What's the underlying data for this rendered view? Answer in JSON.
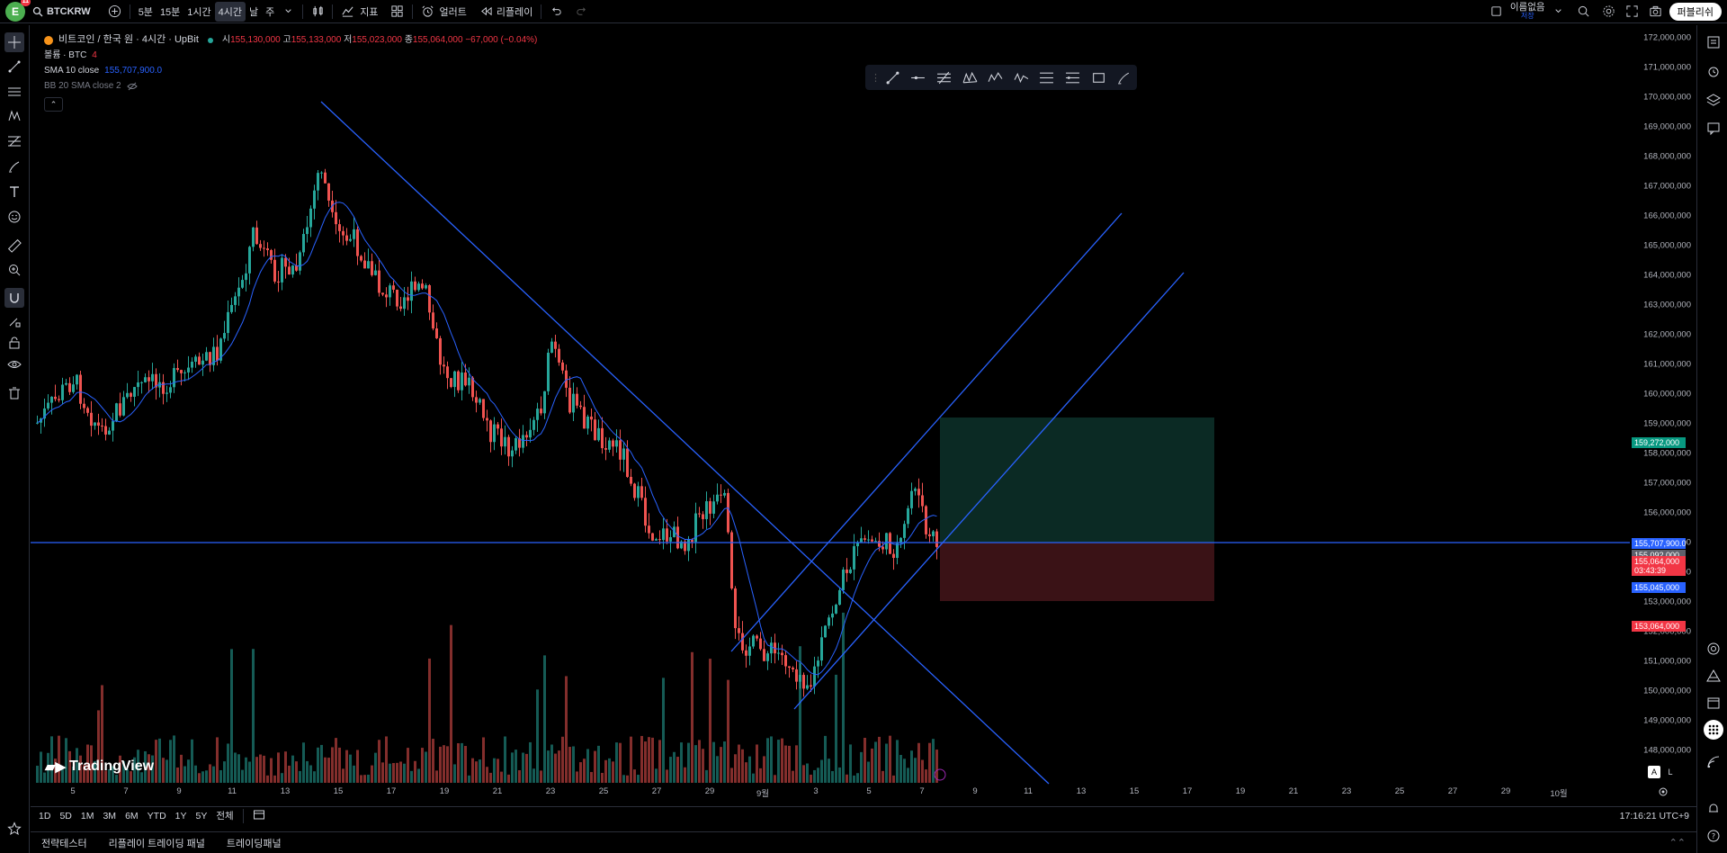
{
  "topbar": {
    "avatar_letter": "E",
    "avatar_badge": "11",
    "symbol": "BTCKRW",
    "intervals": [
      "5분",
      "15분",
      "1시간",
      "4시간",
      "날",
      "주"
    ],
    "active_interval": "4시간",
    "indicators_label": "지표",
    "alerts_label": "얼러트",
    "replay_label": "리플레이",
    "layout_name": "이름없음",
    "layout_status": "저장",
    "publish_label": "퍼블리쉬"
  },
  "legend": {
    "title": "비트코인 / 한국 원 · 4시간 · UpBit",
    "ohlc": {
      "o_label": "시",
      "o": "155,130,000",
      "h_label": "고",
      "h": "155,133,000",
      "l_label": "저",
      "l": "155,023,000",
      "c_label": "종",
      "c": "155,064,000",
      "change": "−67,000 (−0.04%)"
    },
    "volume_label": "볼륨 · BTC",
    "volume_value": "4",
    "sma_label": "SMA 10 close",
    "sma_value": "155,707,900.0",
    "bb_label": "BB 20 SMA close 2"
  },
  "price_axis": {
    "ticks": [
      "172,000,000",
      "171,000,000",
      "170,000,000",
      "169,000,000",
      "168,000,000",
      "167,000,000",
      "166,000,000",
      "165,000,000",
      "164,000,000",
      "163,000,000",
      "162,000,000",
      "161,000,000",
      "160,000,000",
      "159,000,000",
      "158,000,000",
      "157,000,000",
      "156,000,000",
      "155,000,000",
      "154,000,000",
      "153,000,000",
      "152,000,000",
      "151,000,000",
      "150,000,000",
      "149,000,000",
      "148,000,000"
    ],
    "tag_target": "159,272,000",
    "tag_sma": "155,707,900.0",
    "tag_bb": "155,092,000",
    "tag_last": "155,064,000",
    "tag_countdown": "03:43:39",
    "tag_line": "155,045,000",
    "tag_stop": "153,064,000"
  },
  "time_axis": [
    "5",
    "7",
    "9",
    "11",
    "13",
    "15",
    "17",
    "19",
    "21",
    "23",
    "25",
    "27",
    "29",
    "9월",
    "3",
    "5",
    "7",
    "9",
    "11",
    "13",
    "15",
    "17",
    "19",
    "21",
    "23",
    "25",
    "27",
    "29",
    "10월"
  ],
  "range_bar": {
    "ranges": [
      "1D",
      "5D",
      "1M",
      "3M",
      "6M",
      "YTD",
      "1Y",
      "5Y",
      "전체"
    ],
    "clock": "17:16:21 UTC+9"
  },
  "panels": [
    "전략테스터",
    "리플레이 트레이딩 패널",
    "트레이딩패널"
  ],
  "logo_text": "TradingView",
  "scale_buttons": [
    "A",
    "L"
  ],
  "colors": {
    "up": "#26a69a",
    "down": "#ef5350",
    "trendline": "#2962ff",
    "sma": "#2962ff",
    "target_zone": "#0b2a24",
    "stop_zone": "#3a1216"
  }
}
